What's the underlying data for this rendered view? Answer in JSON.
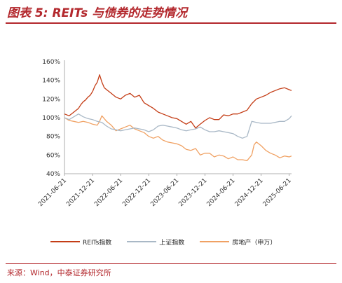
{
  "title": "图表 5: REITs 与债券的走势情况",
  "source": "来源：Wind，中泰证券研究所",
  "chart_data": {
    "type": "line",
    "y_ticks": [
      "40%",
      "60%",
      "80%",
      "100%",
      "120%",
      "140%",
      "160%"
    ],
    "ylim": [
      40,
      160
    ],
    "x_ticks": [
      "2021-06-21",
      "2021-12-21",
      "2022-06-21",
      "2022-12-21",
      "2023-06-21",
      "2023-12-21",
      "2024-06-21",
      "2024-12-21",
      "2025-06-21"
    ],
    "xlim": [
      0,
      48.5
    ],
    "legend_position": "bottom",
    "series": [
      {
        "name": "REITs指数",
        "color": "#c43d16",
        "x": [
          0,
          1,
          2,
          3,
          3.5,
          4,
          4.5,
          5,
          5.5,
          6,
          6.5,
          7,
          7.5,
          8,
          8.5,
          9,
          10,
          11,
          12,
          13,
          14,
          15,
          16,
          17,
          18,
          19,
          20,
          21,
          22,
          23,
          24,
          25,
          26,
          27,
          28,
          29,
          30,
          31,
          32,
          33,
          34,
          35,
          36,
          37,
          38,
          39,
          40,
          41,
          42,
          43,
          44,
          45,
          46,
          47,
          48,
          48.5
        ],
        "values": [
          104,
          102,
          106,
          110,
          114,
          117,
          119,
          122,
          124,
          128,
          134,
          138,
          146,
          138,
          132,
          130,
          126,
          122,
          120,
          124,
          126,
          122,
          124,
          116,
          113,
          110,
          106,
          104,
          102,
          100,
          99,
          96,
          93,
          96,
          89,
          93,
          97,
          100,
          98,
          98,
          103,
          102,
          104,
          104,
          106,
          108,
          115,
          120,
          122,
          124,
          127,
          129,
          131,
          132,
          130,
          129
        ]
      },
      {
        "name": "上证指数",
        "color": "#a9b8c6",
        "x": [
          0,
          1,
          2,
          3,
          4,
          5,
          6,
          7,
          8,
          9,
          10,
          11,
          12,
          13,
          14,
          15,
          16,
          17,
          18,
          19,
          20,
          21,
          22,
          23,
          24,
          25,
          26,
          27,
          28,
          29,
          30,
          31,
          32,
          33,
          34,
          35,
          36,
          37,
          38,
          39,
          40,
          41,
          42,
          43,
          44,
          45,
          46,
          47,
          48,
          48.5
        ],
        "values": [
          100,
          98,
          101,
          104,
          101,
          99,
          98,
          96,
          95,
          91,
          88,
          87,
          86,
          87,
          88,
          89,
          88,
          87,
          85,
          87,
          91,
          92,
          91,
          90,
          89,
          87,
          86,
          87,
          88,
          90,
          87,
          85,
          85,
          86,
          85,
          84,
          83,
          80,
          78,
          80,
          96,
          95,
          94,
          94,
          94,
          95,
          96,
          96,
          99,
          102
        ]
      },
      {
        "name": "房地产（申万）",
        "color": "#f0a163",
        "x": [
          0,
          1,
          2,
          3,
          4,
          5,
          6,
          7,
          7.5,
          8,
          9,
          10,
          11,
          12,
          13,
          14,
          15,
          16,
          17,
          18,
          19,
          20,
          21,
          22,
          23,
          24,
          25,
          26,
          27,
          28,
          29,
          30,
          31,
          32,
          33,
          34,
          35,
          36,
          37,
          38,
          39,
          40,
          40.5,
          41,
          42,
          43,
          44,
          45,
          46,
          47,
          48,
          48.5
        ],
        "values": [
          100,
          97,
          96,
          95,
          96,
          95,
          93,
          92,
          96,
          102,
          96,
          92,
          86,
          88,
          90,
          92,
          88,
          86,
          84,
          80,
          78,
          80,
          76,
          74,
          73,
          72,
          70,
          66,
          65,
          67,
          60,
          62,
          62,
          58,
          60,
          59,
          56,
          58,
          55,
          55,
          54,
          60,
          71,
          74,
          70,
          65,
          62,
          60,
          57,
          59,
          58,
          59
        ]
      }
    ]
  }
}
